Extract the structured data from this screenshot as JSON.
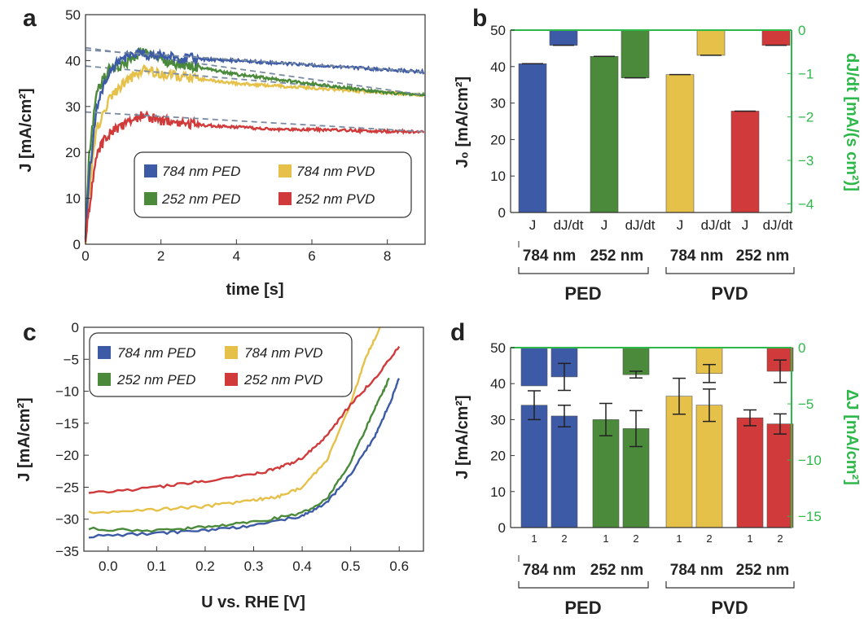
{
  "panels": {
    "a": "a",
    "b": "b",
    "c": "c",
    "d": "d"
  },
  "colors": {
    "ped784": "#3c5aa6",
    "ped252": "#4a8a3a",
    "pvd784": "#e6c14a",
    "pvd252": "#d03a3a",
    "right_axis": "#2fb84a"
  },
  "chart_data": [
    {
      "panel": "a",
      "type": "line",
      "xlabel": "time [s]",
      "ylabel": "J [mA/cm²]",
      "xlim": [
        0,
        9
      ],
      "ylim": [
        0,
        50
      ],
      "xticks": [
        "0",
        "2",
        "4",
        "6",
        "8"
      ],
      "yticks": [
        "0",
        "10",
        "20",
        "30",
        "40",
        "50"
      ],
      "legend": "inside-right-lower",
      "series": [
        {
          "name": "784 nm PED",
          "x": [
            0,
            0.1,
            0.3,
            0.6,
            0.9,
            1.2,
            2,
            3,
            4,
            5,
            6,
            7,
            8,
            9
          ],
          "y": [
            2,
            15,
            30,
            37,
            40,
            41.5,
            41,
            40.3,
            40,
            39.5,
            39,
            38.5,
            38,
            37.5
          ]
        },
        {
          "name": "252 nm PED",
          "x": [
            0,
            0.1,
            0.3,
            0.6,
            1,
            1.5,
            2,
            3,
            4,
            5,
            6,
            7,
            8,
            9
          ],
          "y": [
            2,
            20,
            33,
            38,
            39,
            42,
            40,
            38.5,
            37,
            36,
            35,
            34,
            33,
            32.5
          ]
        },
        {
          "name": "784 nm PVD",
          "x": [
            0,
            0.1,
            0.3,
            0.6,
            1,
            1.5,
            2,
            3,
            4,
            5,
            6,
            7,
            8,
            9
          ],
          "y": [
            1,
            12,
            25,
            31,
            35,
            38,
            37,
            36,
            35,
            34.5,
            34,
            33.5,
            33,
            32.5
          ]
        },
        {
          "name": "252 nm PVD",
          "x": [
            0,
            0.1,
            0.3,
            0.6,
            1,
            1.5,
            2,
            3,
            4,
            5,
            6,
            7,
            8,
            9
          ],
          "y": [
            1,
            8,
            20,
            24,
            26,
            28,
            27,
            26,
            25.5,
            25,
            25,
            24.8,
            24.6,
            24.5
          ]
        }
      ]
    },
    {
      "panel": "b",
      "type": "bar",
      "ylabel": "J₀ [mA/cm²]",
      "ylabel_right": "dJ/dt [mA/(s cm²)]",
      "ylim": [
        0,
        50
      ],
      "ylim_right": [
        -4.2,
        0
      ],
      "yticks": [
        "0",
        "10",
        "20",
        "30",
        "40",
        "50"
      ],
      "yticks_right": [
        "0",
        "−1",
        "−2",
        "−3",
        "−4"
      ],
      "categories": [
        "J",
        "dJ/dt",
        "J",
        "dJ/dt",
        "J",
        "dJ/dt",
        "J",
        "dJ/dt"
      ],
      "thickness_labels": [
        "784 nm",
        "252 nm",
        "784 nm",
        "252 nm"
      ],
      "group_labels": [
        "PED",
        "PVD"
      ],
      "series": [
        {
          "name": "784 nm PED",
          "J0": 40.8,
          "dJdt": -0.35
        },
        {
          "name": "252 nm PED",
          "J0": 42.8,
          "dJdt": -1.1
        },
        {
          "name": "784 nm PVD",
          "J0": 37.8,
          "dJdt": -0.58
        },
        {
          "name": "252 nm PVD",
          "J0": 27.8,
          "dJdt": -0.35
        }
      ]
    },
    {
      "panel": "c",
      "type": "line",
      "xlabel": "U vs. RHE [V]",
      "ylabel": "J [mA/cm²]",
      "xlim": [
        -0.05,
        0.65
      ],
      "ylim": [
        -35,
        0
      ],
      "xticks": [
        "0.0",
        "0.1",
        "0.2",
        "0.3",
        "0.4",
        "0.5",
        "0.6"
      ],
      "yticks": [
        "0",
        "−5",
        "−10",
        "−15",
        "−20",
        "−25",
        "−30",
        "−35"
      ],
      "legend": "top-left",
      "series": [
        {
          "name": "784 nm PED",
          "x": [
            -0.04,
            0.1,
            0.2,
            0.3,
            0.4,
            0.45,
            0.5,
            0.55,
            0.58,
            0.6
          ],
          "y": [
            -32.7,
            -32.2,
            -31.7,
            -31,
            -29.5,
            -27.5,
            -23,
            -17,
            -12,
            -8
          ]
        },
        {
          "name": "252 nm PED",
          "x": [
            -0.04,
            0.1,
            0.2,
            0.3,
            0.4,
            0.45,
            0.5,
            0.53,
            0.56,
            0.58
          ],
          "y": [
            -31.5,
            -31.8,
            -31.2,
            -30.5,
            -29,
            -27,
            -21,
            -16,
            -11,
            -8
          ]
        },
        {
          "name": "784 nm PVD",
          "x": [
            -0.04,
            0.1,
            0.2,
            0.3,
            0.35,
            0.4,
            0.45,
            0.5,
            0.53,
            0.56
          ],
          "y": [
            -29,
            -28.5,
            -28,
            -27,
            -26.5,
            -25,
            -21,
            -12,
            -5,
            0
          ]
        },
        {
          "name": "252 nm PVD",
          "x": [
            -0.04,
            0.1,
            0.2,
            0.3,
            0.35,
            0.4,
            0.45,
            0.5,
            0.55,
            0.6
          ],
          "y": [
            -26,
            -25,
            -24,
            -23,
            -22,
            -20.5,
            -17,
            -12,
            -8,
            -3
          ]
        }
      ]
    },
    {
      "panel": "d",
      "type": "bar",
      "ylabel": "J [mA/cm²]",
      "ylabel_right": "ΔJ [mA/cm²]",
      "ylim": [
        0,
        50
      ],
      "ylim_right": [
        -16,
        0
      ],
      "yticks": [
        "0",
        "10",
        "20",
        "30",
        "40",
        "50"
      ],
      "yticks_right": [
        "0",
        "−5",
        "−10",
        "−15"
      ],
      "sublabels": [
        "1",
        "2"
      ],
      "thickness_labels": [
        "784 nm",
        "252 nm",
        "784 nm",
        "252 nm"
      ],
      "group_labels": [
        "PED",
        "PVD"
      ],
      "series": [
        {
          "name": "784 nm PED",
          "J": [
            34,
            31
          ],
          "J_err": [
            4,
            3
          ],
          "dJ": [
            -3.4,
            -2.6
          ],
          "dJ_err": [
            0,
            1.2
          ]
        },
        {
          "name": "252 nm PED",
          "J": [
            30,
            27.5
          ],
          "J_err": [
            4.5,
            5
          ],
          "dJ": [
            0,
            -2.4
          ],
          "dJ_err": [
            0,
            0.3
          ]
        },
        {
          "name": "784 nm PVD",
          "J": [
            36.5,
            34
          ],
          "J_err": [
            5,
            4.5
          ],
          "dJ": [
            0,
            -2.3
          ],
          "dJ_err": [
            0,
            0.8
          ]
        },
        {
          "name": "252 nm PVD",
          "J": [
            30.5,
            28.8
          ],
          "J_err": [
            2.2,
            2.8
          ],
          "dJ": [
            0,
            -2.1
          ],
          "dJ_err": [
            0,
            1
          ]
        }
      ]
    }
  ]
}
